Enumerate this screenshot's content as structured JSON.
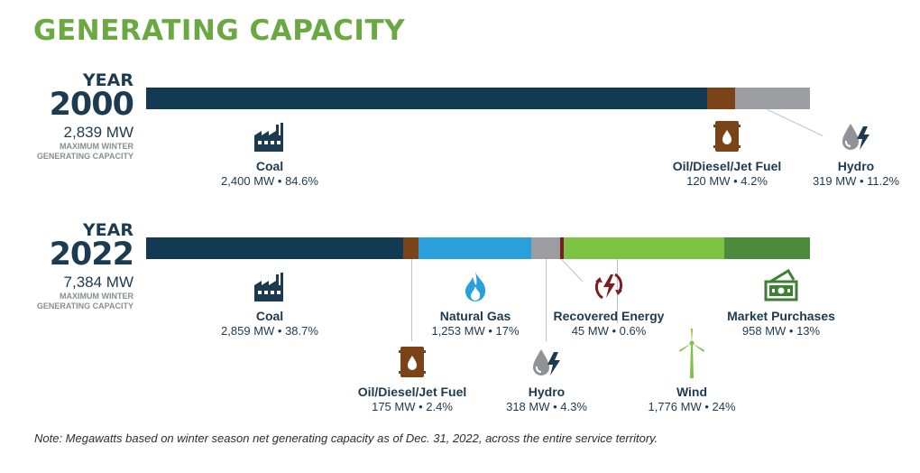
{
  "title": "GENERATING CAPACITY",
  "note": "Note: Megawatts based on winter season net generating capacity as of Dec. 31, 2022, across the entire service territory.",
  "colors": {
    "coal": "#123a52",
    "oil": "#7a4318",
    "gas": "#2aa0db",
    "hydro": "#9b9da0",
    "recovered": "#7a1f1f",
    "wind": "#7cc243",
    "market": "#4a8a3a",
    "title": "#6aa842"
  },
  "chart_data": [
    {
      "type": "bar",
      "stacked": true,
      "orientation": "horizontal",
      "year_word": "YEAR",
      "year": "2000",
      "total": "2,839 MW",
      "subtitle_line1": "MAXIMUM WINTER",
      "subtitle_line2": "GENERATING CAPACITY",
      "segments": [
        {
          "key": "coal",
          "name": "Coal",
          "mw": 2400,
          "percent": 84.6,
          "label": "2,400 MW • 84.6%",
          "icon": "factory-icon",
          "color": "#123a52"
        },
        {
          "key": "oil",
          "name": "Oil/Diesel/Jet Fuel",
          "mw": 120,
          "percent": 4.2,
          "label": "120 MW • 4.2%",
          "icon": "oil-barrel-icon",
          "color": "#7a4318"
        },
        {
          "key": "hydro",
          "name": "Hydro",
          "mw": 319,
          "percent": 11.2,
          "label": "319 MW • 11.2%",
          "icon": "hydro-drop-icon",
          "color": "#9b9da0"
        }
      ]
    },
    {
      "type": "bar",
      "stacked": true,
      "orientation": "horizontal",
      "year_word": "YEAR",
      "year": "2022",
      "total": "7,384 MW",
      "subtitle_line1": "MAXIMUM WINTER",
      "subtitle_line2": "GENERATING CAPACITY",
      "segments": [
        {
          "key": "coal",
          "name": "Coal",
          "mw": 2859,
          "percent": 38.7,
          "label": "2,859 MW • 38.7%",
          "icon": "factory-icon",
          "color": "#123a52"
        },
        {
          "key": "oil",
          "name": "Oil/Diesel/Jet Fuel",
          "mw": 175,
          "percent": 2.4,
          "label": "175 MW • 2.4%",
          "icon": "oil-barrel-icon",
          "color": "#7a4318"
        },
        {
          "key": "gas",
          "name": "Natural Gas",
          "mw": 1253,
          "percent": 17,
          "label": "1,253 MW • 17%",
          "icon": "flame-icon",
          "color": "#2aa0db"
        },
        {
          "key": "hydro",
          "name": "Hydro",
          "mw": 318,
          "percent": 4.3,
          "label": "318 MW • 4.3%",
          "icon": "hydro-drop-icon",
          "color": "#9b9da0"
        },
        {
          "key": "recovered",
          "name": "Recovered Energy",
          "mw": 45,
          "percent": 0.6,
          "label": "45 MW • 0.6%",
          "icon": "recovered-energy-icon",
          "color": "#7a1f1f"
        },
        {
          "key": "wind",
          "name": "Wind",
          "mw": 1776,
          "percent": 24,
          "label": "1,776 MW • 24%",
          "icon": "wind-turbine-icon",
          "color": "#7cc243"
        },
        {
          "key": "market",
          "name": "Market Purchases",
          "mw": 958,
          "percent": 13,
          "label": "958 MW • 13%",
          "icon": "money-icon",
          "color": "#4a8a3a"
        }
      ]
    }
  ]
}
